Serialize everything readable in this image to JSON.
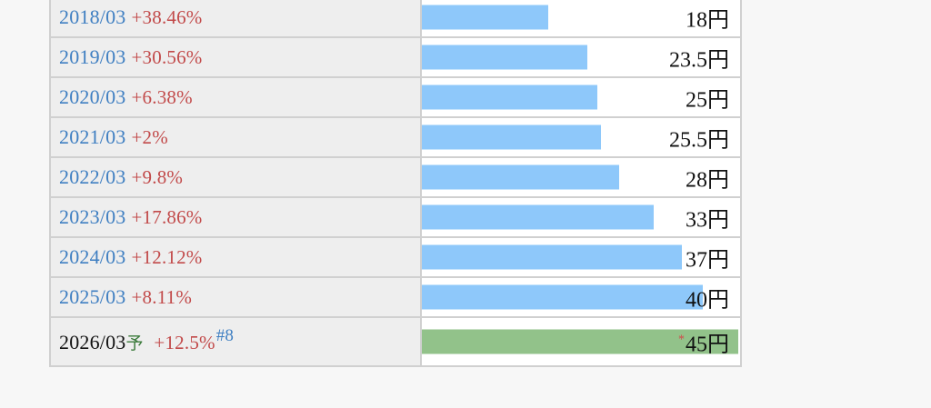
{
  "colors": {
    "bar_actual": "#8ec8fa",
    "bar_forecast": "#92c28a",
    "period_link": "#3f7fc2",
    "change_text": "#c24a4a"
  },
  "max_value": 45,
  "rows": [
    {
      "period": "2018/03",
      "change": "+38.46%",
      "value": 18,
      "value_label": "18円"
    },
    {
      "period": "2019/03",
      "change": "+30.56%",
      "value": 23.5,
      "value_label": "23.5円"
    },
    {
      "period": "2020/03",
      "change": "+6.38%",
      "value": 25,
      "value_label": "25円"
    },
    {
      "period": "2021/03",
      "change": "+2%",
      "value": 25.5,
      "value_label": "25.5円"
    },
    {
      "period": "2022/03",
      "change": "+9.8%",
      "value": 28,
      "value_label": "28円"
    },
    {
      "period": "2023/03",
      "change": "+17.86%",
      "value": 33,
      "value_label": "33円"
    },
    {
      "period": "2024/03",
      "change": "+12.12%",
      "value": 37,
      "value_label": "37円"
    },
    {
      "period": "2025/03",
      "change": "+8.11%",
      "value": 40,
      "value_label": "40円"
    }
  ],
  "forecast": {
    "period": "2026/03",
    "forecast_mark": "予",
    "change": "+12.5%",
    "note": "#8",
    "value": 45,
    "value_label": "45円",
    "star": "*"
  }
}
